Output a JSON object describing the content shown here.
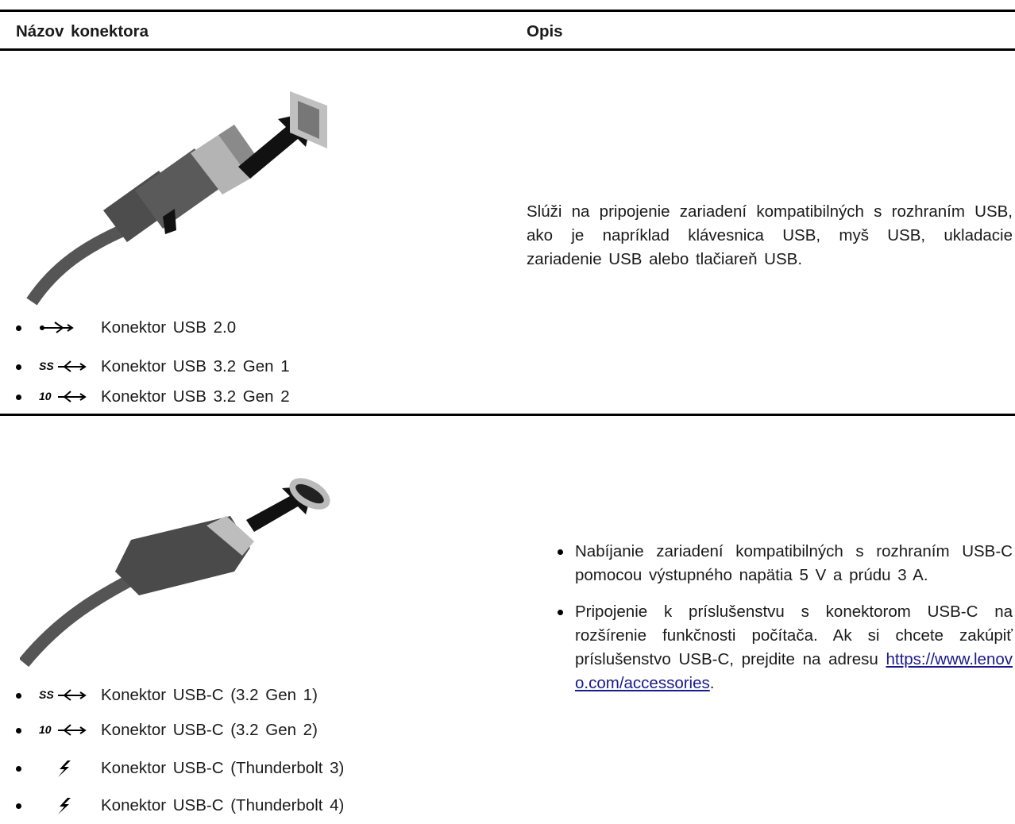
{
  "table": {
    "headers": [
      "Názov konektora",
      "Opis"
    ],
    "rows": [
      {
        "connectors": [
          {
            "label": "Konektor USB 2.0"
          },
          {
            "icon_text": "SS",
            "label": "Konektor USB 3.2 Gen 1"
          },
          {
            "icon_text": "10",
            "label": "Konektor USB 3.2 Gen 2"
          }
        ],
        "description": "Slúži na pripojenie zariadení kompatibilných s rozhraním USB, ako je napríklad klávesnica USB, myš USB, ukladacie zariadenie USB alebo tlačiareň USB."
      },
      {
        "connectors": [
          {
            "icon_text": "SS",
            "label": "Konektor USB-C (3.2 Gen 1)"
          },
          {
            "icon_text": "10",
            "label": "Konektor USB-C (3.2 Gen 2)"
          },
          {
            "label": "Konektor USB-C (Thunderbolt 3)"
          },
          {
            "label": "Konektor USB-C (Thunderbolt 4)"
          }
        ],
        "description": [
          {
            "text": "Nabíjanie zariadení kompatibilných s rozhraním USB-C pomocou výstupného napätia 5 V a prúdu 3 A."
          },
          {
            "text": "Pripojenie k príslušenstvu s konektorom USB-C na rozšírenie funkčnosti počítača. Ak si chcete zakúpiť príslušenstvo USB-C, prejdite na adresu ",
            "link": "https://www.lenovo.com/accessories",
            "after": "."
          }
        ]
      }
    ]
  }
}
